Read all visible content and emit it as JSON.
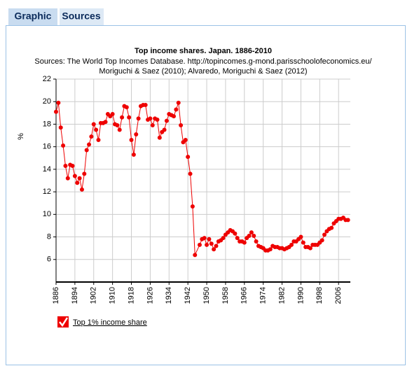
{
  "ui": {
    "tabs": [
      "Graphic",
      "Sources"
    ]
  },
  "chart_data": {
    "type": "line",
    "title": "Top income shares. Japan. 1886-2010",
    "subtitle": [
      "Sources: The World Top Incomes Database. http://topincomes.g-mond.parisschoolofeconomics.eu/",
      "Moriguchi & Saez (2010); Alvaredo, Moriguchi & Saez (2012)"
    ],
    "y_label": "%",
    "x": [
      1886,
      1887,
      1888,
      1889,
      1890,
      1891,
      1892,
      1893,
      1894,
      1895,
      1896,
      1897,
      1898,
      1899,
      1900,
      1901,
      1902,
      1903,
      1904,
      1905,
      1906,
      1907,
      1908,
      1909,
      1910,
      1911,
      1912,
      1913,
      1914,
      1915,
      1916,
      1917,
      1918,
      1919,
      1920,
      1921,
      1922,
      1923,
      1924,
      1925,
      1926,
      1927,
      1928,
      1929,
      1930,
      1931,
      1932,
      1933,
      1934,
      1935,
      1936,
      1937,
      1938,
      1939,
      1940,
      1941,
      1942,
      1943,
      1944,
      1945,
      1947,
      1948,
      1949,
      1950,
      1951,
      1952,
      1953,
      1954,
      1955,
      1956,
      1957,
      1958,
      1959,
      1960,
      1961,
      1962,
      1963,
      1964,
      1965,
      1966,
      1967,
      1968,
      1969,
      1970,
      1971,
      1972,
      1973,
      1974,
      1975,
      1976,
      1977,
      1978,
      1979,
      1980,
      1981,
      1982,
      1983,
      1984,
      1985,
      1986,
      1987,
      1988,
      1989,
      1990,
      1991,
      1992,
      1993,
      1994,
      1995,
      1996,
      1997,
      1998,
      1999,
      2000,
      2001,
      2002,
      2003,
      2004,
      2005,
      2006,
      2007,
      2008,
      2009,
      2010
    ],
    "series": [
      {
        "name": "Top 1% income share",
        "color": "#ee0000",
        "values": [
          19.1,
          19.9,
          17.7,
          16.1,
          14.3,
          13.2,
          14.4,
          14.3,
          13.4,
          12.8,
          13.2,
          12.2,
          13.6,
          15.7,
          16.2,
          16.9,
          18.0,
          17.5,
          16.6,
          18.1,
          18.1,
          18.2,
          18.9,
          18.7,
          18.9,
          18.0,
          17.9,
          17.5,
          18.6,
          19.6,
          19.5,
          18.6,
          16.6,
          15.3,
          17.1,
          18.5,
          19.6,
          19.7,
          19.7,
          18.4,
          18.5,
          17.9,
          18.5,
          18.4,
          16.8,
          17.3,
          17.5,
          18.3,
          18.9,
          18.8,
          18.7,
          19.3,
          19.9,
          17.9,
          16.4,
          16.6,
          15.1,
          13.6,
          10.7,
          6.4,
          7.3,
          7.8,
          7.9,
          7.3,
          7.8,
          7.4,
          6.9,
          7.2,
          7.6,
          7.7,
          7.9,
          8.2,
          8.4,
          8.6,
          8.5,
          8.3,
          7.9,
          7.6,
          7.6,
          7.5,
          7.9,
          8.1,
          8.4,
          8.1,
          7.6,
          7.2,
          7.1,
          7.0,
          6.8,
          6.8,
          6.9,
          7.2,
          7.1,
          7.1,
          7.0,
          7.0,
          6.9,
          7.0,
          7.1,
          7.3,
          7.6,
          7.6,
          7.8,
          8.0,
          7.5,
          7.1,
          7.1,
          7.0,
          7.3,
          7.3,
          7.3,
          7.5,
          7.7,
          8.2,
          8.5,
          8.7,
          8.8,
          9.2,
          9.4,
          9.6,
          9.6,
          9.7,
          9.5,
          9.5
        ]
      }
    ],
    "xlim": [
      1886,
      2011
    ],
    "xticks": [
      1886,
      1894,
      1902,
      1910,
      1918,
      1926,
      1934,
      1942,
      1950,
      1958,
      1966,
      1974,
      1982,
      1990,
      1998,
      2006
    ],
    "ylim": [
      4,
      22
    ],
    "yticks": [
      6,
      8,
      10,
      12,
      14,
      16,
      18,
      20,
      22
    ],
    "grid": true
  }
}
